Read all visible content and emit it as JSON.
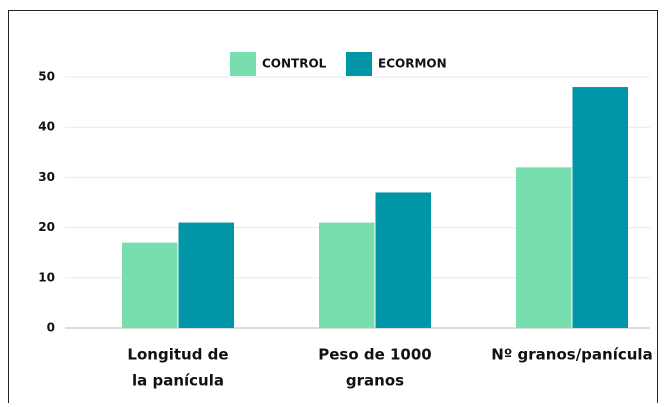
{
  "chart_data": {
    "type": "bar",
    "categories": [
      [
        "Longitud de",
        "la panícula"
      ],
      [
        "Peso de 1000",
        "granos"
      ],
      [
        "Nº granos/panícula"
      ]
    ],
    "series": [
      {
        "name": "CONTROL",
        "color": "#77dfae",
        "values": [
          17,
          21,
          32
        ]
      },
      {
        "name": "ECORMON",
        "color": "#0096a8",
        "values": [
          21,
          27,
          48
        ]
      }
    ],
    "ylim": [
      0,
      50
    ],
    "yticks": [
      0,
      10,
      20,
      30,
      40,
      50
    ],
    "grid": true,
    "legend": "top"
  }
}
